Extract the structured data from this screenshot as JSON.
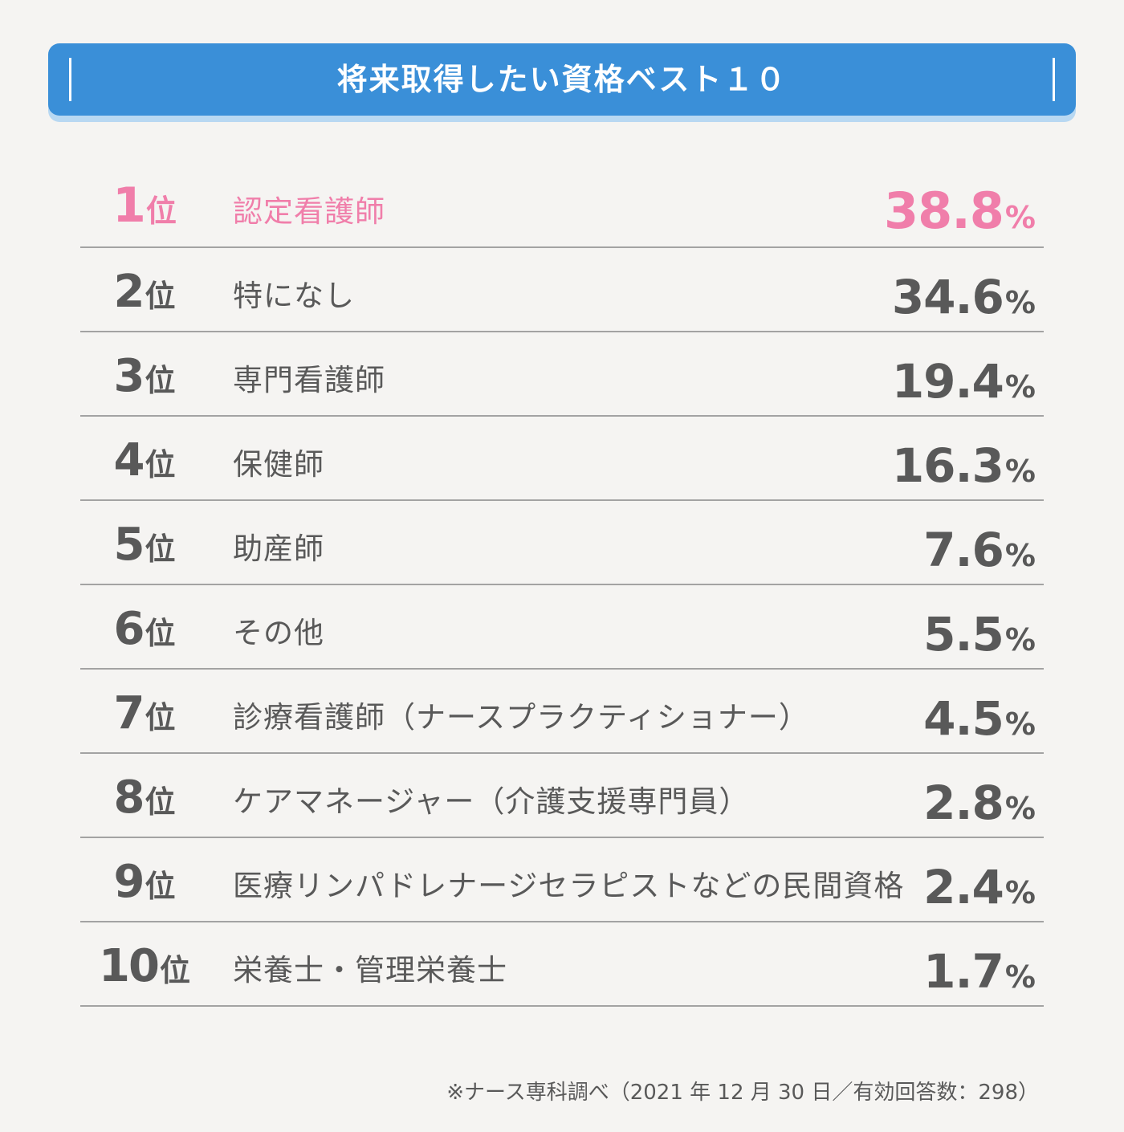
{
  "title": "将来取得したい資格ベスト１０",
  "rank_suffix": "位",
  "percent_sign": "%",
  "accent_color": "#f07eaa",
  "header_color": "#3a8fd8",
  "chart_data": {
    "type": "table",
    "title": "将来取得したい資格ベスト１０",
    "rows": [
      {
        "rank": "1",
        "label": "認定看護師",
        "value": "38.8"
      },
      {
        "rank": "2",
        "label": "特になし",
        "value": "34.6"
      },
      {
        "rank": "3",
        "label": "専門看護師",
        "value": "19.4"
      },
      {
        "rank": "4",
        "label": "保健師",
        "value": "16.3"
      },
      {
        "rank": "5",
        "label": "助産師",
        "value": "7.6"
      },
      {
        "rank": "6",
        "label": "その他",
        "value": "5.5"
      },
      {
        "rank": "7",
        "label": "診療看護師（ナースプラクティショナー）",
        "value": "4.5"
      },
      {
        "rank": "8",
        "label": "ケアマネージャー（介護支援専門員）",
        "value": "2.8"
      },
      {
        "rank": "9",
        "label": "医療リンパドレナージセラピストなどの民間資格",
        "value": "2.4"
      },
      {
        "rank": "10",
        "label": "栄養士・管理栄養士",
        "value": "1.7"
      }
    ]
  },
  "source_note": "※ナース専科調べ（2021 年 12 月 30 日／有効回答数：298）"
}
